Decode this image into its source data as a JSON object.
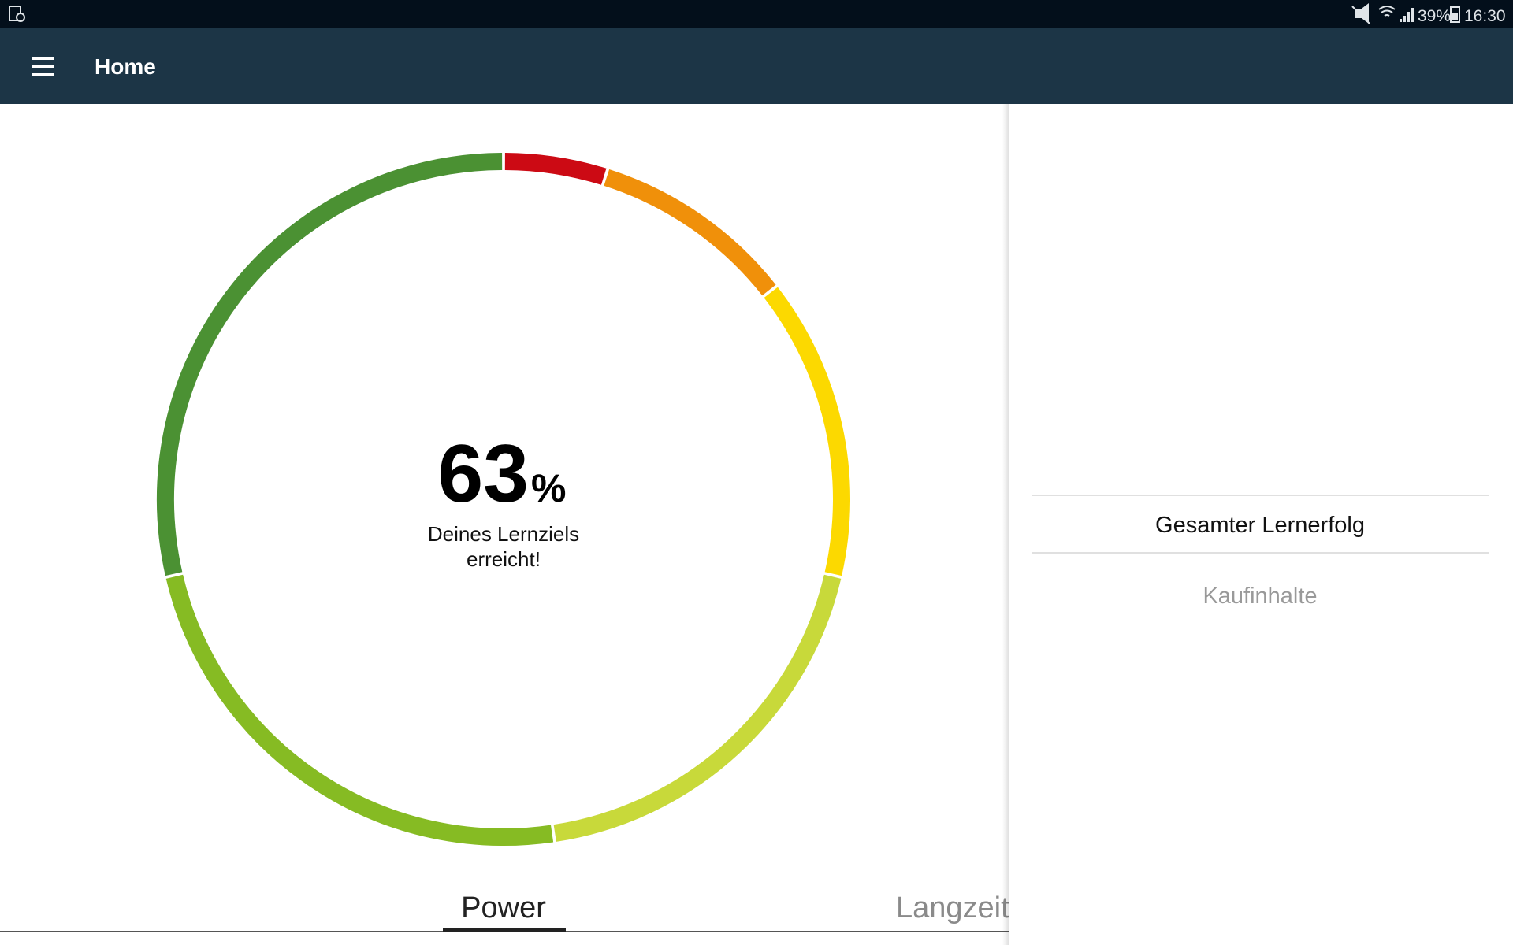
{
  "status_bar": {
    "battery": "39%",
    "time": "16:30"
  },
  "app_bar": {
    "title": "Home"
  },
  "progress": {
    "value": "63",
    "unit": "%",
    "caption_line1": "Deines Lernziels",
    "caption_line2": "erreicht!"
  },
  "tabs": [
    "Power",
    "Langzeit"
  ],
  "side_panel": {
    "items": [
      "Gesamter Lernerfolg",
      "Kaufinhalte"
    ]
  }
}
